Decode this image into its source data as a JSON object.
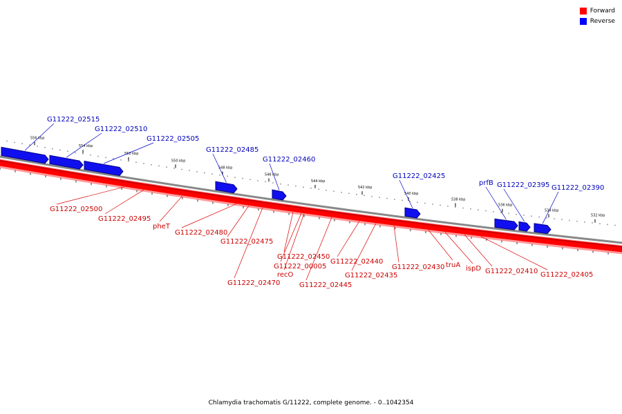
{
  "legend": {
    "items": [
      {
        "label": "Forward",
        "color": "#ff0000"
      },
      {
        "label": "Reverse",
        "color": "#0000ff"
      }
    ]
  },
  "caption": "Chlamydia trachomatis G/11222, complete genome. - 0..1042354",
  "colors": {
    "forward": "#ff0000",
    "reverse": "#1010ee",
    "backbone": "#888888"
  },
  "scale_ticks": [
    "556 kbp",
    "554 kbp",
    "552 kbp",
    "550 kbp",
    "548 kbp",
    "546 kbp",
    "544 kbp",
    "542 kbp",
    "540 kbp",
    "538 kbp",
    "536 kbp",
    "534 kbp",
    "532 kbp"
  ],
  "reverse_genes": [
    "G11222_02515",
    "G11222_02510",
    "G11222_02505",
    "G11222_02485",
    "G11222_02460",
    "G11222_02425",
    "prfB",
    "G11222_02395",
    "G11222_02390"
  ],
  "forward_genes": [
    "G11222_02500",
    "G11222_02495",
    "pheT",
    "G11222_02480",
    "G11222_02475",
    "G11222_02470",
    "G11222_02450",
    "G11222_00005",
    "recO",
    "G11222_02445",
    "G11222_02440",
    "G11222_02435",
    "G11222_02430",
    "truA",
    "ispD",
    "G11222_02410",
    "G11222_02405"
  ]
}
